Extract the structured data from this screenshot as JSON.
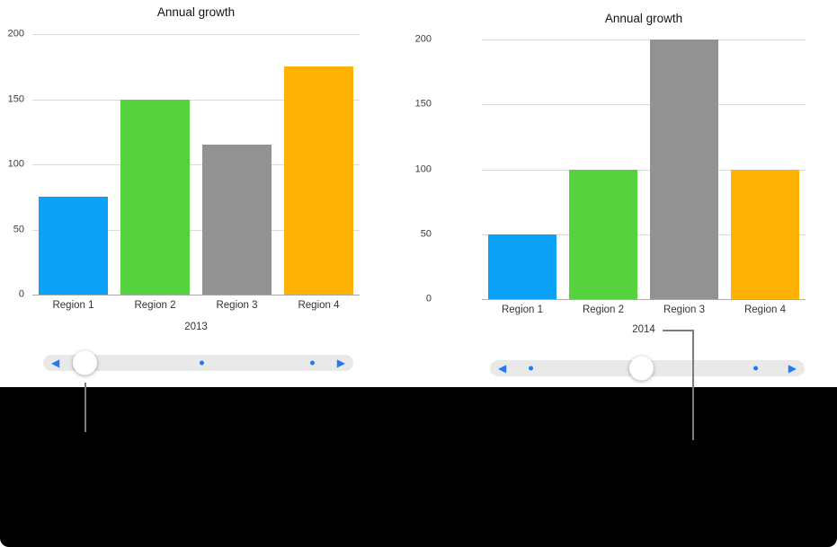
{
  "chart_data": [
    {
      "type": "bar",
      "title": "Annual growth",
      "xlabel": "2013",
      "ylabel": "",
      "categories": [
        "Region 1",
        "Region 2",
        "Region 3",
        "Region 4"
      ],
      "values": [
        75,
        150,
        115,
        175
      ],
      "bar_colors": [
        "#0ca2f7",
        "#57d23f",
        "#929292",
        "#ffb205"
      ],
      "y_ticks": [
        0,
        50,
        100,
        150,
        200
      ],
      "ylim": [
        0,
        200
      ],
      "grid": true,
      "legend": false
    },
    {
      "type": "bar",
      "title": "Annual growth",
      "xlabel": "2014",
      "ylabel": "",
      "categories": [
        "Region 1",
        "Region 2",
        "Region 3",
        "Region 4"
      ],
      "values": [
        50,
        100,
        200,
        100
      ],
      "bar_colors": [
        "#0ca2f7",
        "#57d23f",
        "#929292",
        "#ffb205"
      ],
      "y_ticks": [
        0,
        50,
        100,
        150,
        200
      ],
      "ylim": [
        0,
        200
      ],
      "grid": true,
      "legend": false
    }
  ],
  "sliders": [
    {
      "left_arrow": "◀",
      "right_arrow": "▶",
      "handle_position": "left",
      "dot_count": 2
    },
    {
      "left_arrow": "◀",
      "right_arrow": "▶",
      "handle_position": "center",
      "dot_count": 2
    }
  ],
  "colors": {
    "slider_accent": "#2478f5",
    "slider_track": "#e9e9e9",
    "callout_line": "#7d7d7d",
    "footer_background": "#000000",
    "gridline": "#dbdbdb",
    "axis_line": "#ababab"
  }
}
